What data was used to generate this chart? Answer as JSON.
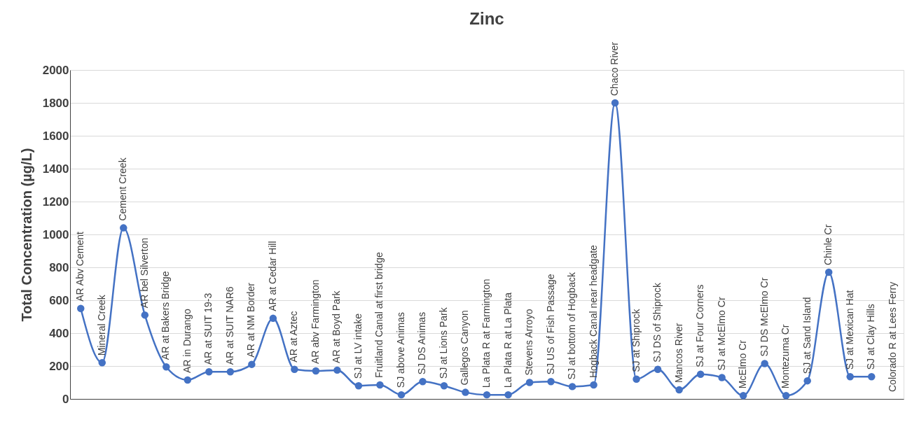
{
  "chart_data": {
    "type": "line",
    "title": "Zinc",
    "ylabel": "Total Concentration (µg/L)",
    "categories": [
      "AR Abv Cement",
      "Mineral Creek",
      "Cement Creek",
      "AR bel Silverton",
      "AR at Bakers Bridge",
      "AR in Durango",
      "AR at SUIT 19-3",
      "AR at SUIT NAR6",
      "AR at NM Border",
      "AR at Cedar Hill",
      "AR at Aztec",
      "AR abv Farmington",
      "AR at Boyd Park",
      "SJ at LV intake",
      "Fruitland Canal at first bridge",
      "SJ above Animas",
      "SJ DS Animas",
      "SJ at Lions Park",
      "Gallegos Canyon",
      "La Plata R at Farmington",
      "La Plata R at La Plata",
      "Stevens Arroyo",
      "SJ US of Fish Passage",
      "SJ at bottom of Hogback",
      "Hogback Canal near headgate",
      "Chaco River",
      "SJ at Shiprock",
      "SJ DS of Shiprock",
      "Mancos River",
      "SJ at Four Corners",
      "SJ at McElmo Cr",
      "McElmo Cr",
      "SJ DS McElmo Cr",
      "Montezuma Cr",
      "SJ at Sand Island",
      "Chinle Cr",
      "SJ at Mexican Hat",
      "SJ at Clay Hills",
      "Colorado R at Lees Ferry"
    ],
    "series": [
      {
        "color": "#4472c4",
        "values": [
          550,
          220,
          1040,
          510,
          195,
          115,
          165,
          165,
          210,
          490,
          180,
          170,
          175,
          80,
          85,
          25,
          105,
          80,
          40,
          25,
          25,
          100,
          105,
          75,
          85,
          1800,
          120,
          180,
          55,
          150,
          130,
          20,
          215,
          20,
          110,
          770,
          135,
          135,
          null
        ]
      }
    ],
    "ylim": [
      0,
      2000
    ],
    "yticks": [
      0,
      200,
      400,
      600,
      800,
      1000,
      1200,
      1400,
      1600,
      1800,
      2000
    ],
    "grid": "y",
    "marker": "circle",
    "line_style": "solid",
    "tick_labels": "y"
  }
}
